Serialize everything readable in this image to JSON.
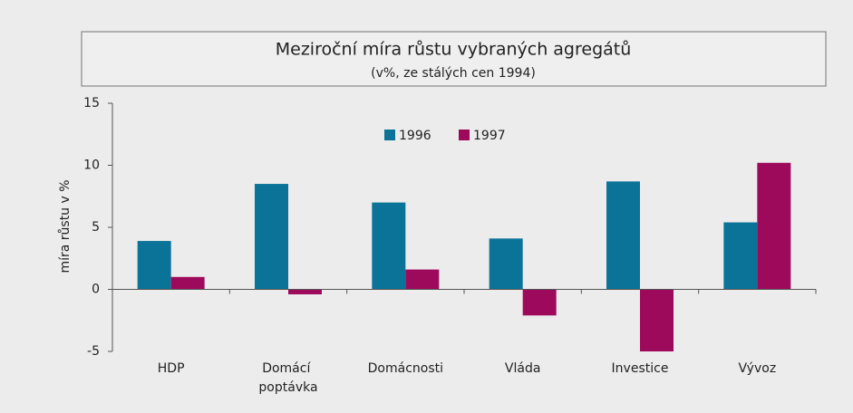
{
  "chart_data": {
    "type": "bar",
    "title": "Meziroční míra růstu vybraných agregátů",
    "subtitle": "(v%, ze stálých cen 1994)",
    "y_label": "míra růstu v %",
    "categories": [
      "HDP",
      "Domácí poptávka",
      "Domácnosti",
      "Vláda",
      "Investice",
      "Vývoz"
    ],
    "series": [
      {
        "name": "1996",
        "color": "#0b7398",
        "values": [
          3.9,
          8.5,
          7.0,
          4.1,
          8.7,
          5.4
        ]
      },
      {
        "name": "1997",
        "color": "#9e0a5b",
        "values": [
          1.0,
          -0.4,
          1.6,
          -2.1,
          -5.0,
          10.2
        ]
      }
    ],
    "ylim": [
      -5,
      15
    ],
    "yticks": [
      -5,
      0,
      5,
      10,
      15
    ],
    "grid": false,
    "legend": "top"
  }
}
